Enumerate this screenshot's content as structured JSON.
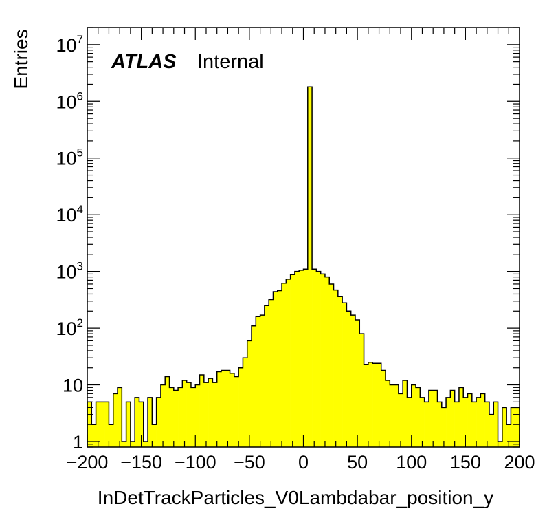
{
  "chart_data": {
    "type": "histogram",
    "experiment_label": "ATLAS",
    "status_label": "Internal",
    "xlabel": "InDetTrackParticles_V0Lambdabar_position_y",
    "ylabel": "Entries",
    "xlim": [
      -200,
      200
    ],
    "ylim": [
      0.8,
      20000000
    ],
    "y_scale": "log",
    "x_ticks": [
      -200,
      -150,
      -100,
      -50,
      0,
      50,
      100,
      150,
      200
    ],
    "x_tick_labels": [
      "−200",
      "−150",
      "−100",
      "−50",
      "0",
      "50",
      "100",
      "150",
      "200"
    ],
    "y_ticks": [
      {
        "value": 1,
        "base": "1",
        "exp": ""
      },
      {
        "value": 10,
        "base": "10",
        "exp": ""
      },
      {
        "value": 100,
        "base": "10",
        "exp": "2"
      },
      {
        "value": 1000,
        "base": "10",
        "exp": "3"
      },
      {
        "value": 10000,
        "base": "10",
        "exp": "4"
      },
      {
        "value": 100000,
        "base": "10",
        "exp": "5"
      },
      {
        "value": 1000000,
        "base": "10",
        "exp": "6"
      },
      {
        "value": 10000000,
        "base": "10",
        "exp": "7"
      }
    ],
    "fill_color": "#ffff00",
    "line_color": "#000000",
    "bin_edges_start": -200,
    "bin_width": 4,
    "values": [
      5,
      2,
      5,
      5,
      5,
      2,
      7,
      9,
      1,
      5,
      1,
      6,
      5,
      1,
      6,
      2,
      6,
      10,
      14,
      9,
      8,
      9,
      12,
      11,
      9,
      10,
      15,
      11,
      13,
      11,
      17,
      18,
      18,
      16,
      14,
      20,
      30,
      60,
      110,
      160,
      170,
      250,
      320,
      440,
      460,
      620,
      730,
      880,
      1000,
      1050,
      1100,
      1800000,
      1100,
      1000,
      900,
      800,
      600,
      470,
      360,
      280,
      200,
      170,
      140,
      80,
      23,
      25,
      24,
      24,
      18,
      12,
      10,
      10,
      7,
      12,
      6,
      10,
      9,
      6,
      5,
      8,
      8,
      5,
      4,
      6,
      8,
      5,
      9,
      6,
      7,
      5,
      6,
      7,
      5,
      3,
      5,
      1,
      4,
      2,
      4,
      4
    ]
  }
}
